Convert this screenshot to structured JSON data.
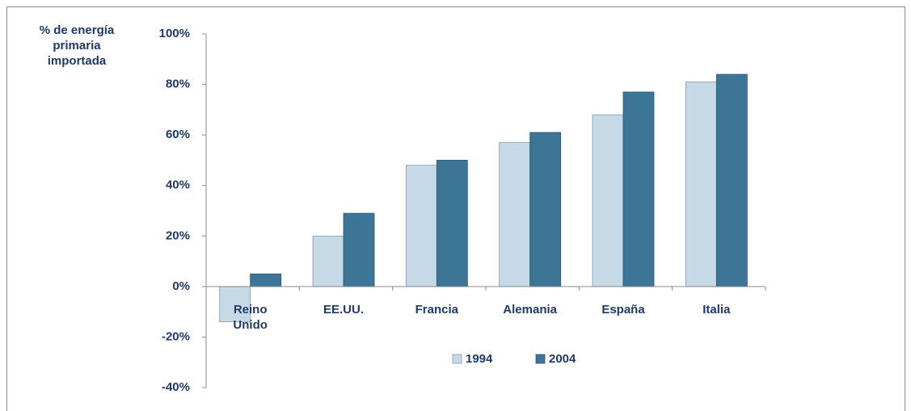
{
  "chart_data": {
    "type": "bar",
    "y_axis_label": "% de energía primaria importada",
    "categories": [
      "Reino Unido",
      "EE.UU.",
      "Francia",
      "Alemania",
      "España",
      "Italia"
    ],
    "series": [
      {
        "name": "1994",
        "color": "#c6d9e7",
        "values": [
          -14,
          20,
          48,
          57,
          68,
          81
        ]
      },
      {
        "name": "2004",
        "color": "#3d7597",
        "values": [
          5,
          29,
          50,
          61,
          77,
          84
        ]
      }
    ],
    "ylim": [
      -40,
      100
    ],
    "yticks": [
      {
        "value": -40,
        "label": "-40%"
      },
      {
        "value": -20,
        "label": "-20%"
      },
      {
        "value": 0,
        "label": "0%"
      },
      {
        "value": 20,
        "label": "20%"
      },
      {
        "value": 40,
        "label": "40%"
      },
      {
        "value": 60,
        "label": "60%"
      },
      {
        "value": 80,
        "label": "80%"
      },
      {
        "value": 100,
        "label": "100%"
      }
    ],
    "legend": "bottom"
  }
}
